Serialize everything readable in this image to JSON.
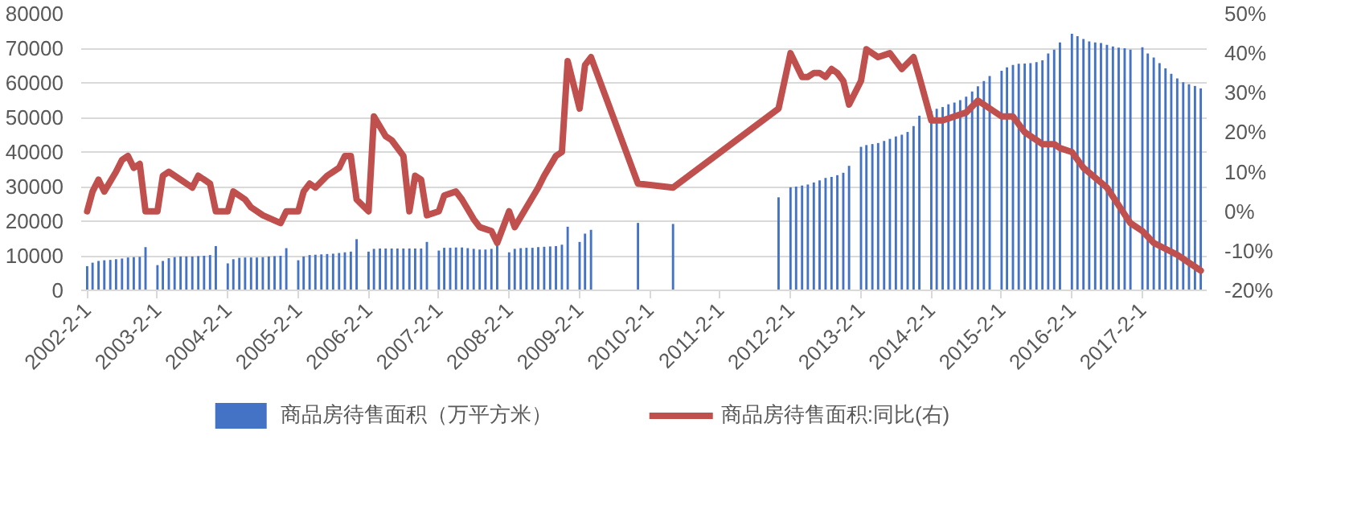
{
  "chart_data": {
    "type": "bar",
    "xlim": [
      "2002-01-01",
      "2018-01-01"
    ],
    "xticks": [
      {
        "value": "2002-02-01",
        "label": "2002-2-1"
      },
      {
        "value": "2003-02-01",
        "label": "2003-2-1"
      },
      {
        "value": "2004-02-01",
        "label": "2004-2-1"
      },
      {
        "value": "2005-02-01",
        "label": "2005-2-1"
      },
      {
        "value": "2006-02-01",
        "label": "2006-2-1"
      },
      {
        "value": "2007-02-01",
        "label": "2007-2-1"
      },
      {
        "value": "2008-02-01",
        "label": "2008-2-1"
      },
      {
        "value": "2009-02-01",
        "label": "2009-2-1"
      },
      {
        "value": "2010-02-01",
        "label": "2010-2-1"
      },
      {
        "value": "2011-02-01",
        "label": "2011-2-1"
      },
      {
        "value": "2012-02-01",
        "label": "2012-2-1"
      },
      {
        "value": "2013-02-01",
        "label": "2013-2-1"
      },
      {
        "value": "2014-02-01",
        "label": "2014-2-1"
      },
      {
        "value": "2015-02-01",
        "label": "2015-2-1"
      },
      {
        "value": "2016-02-01",
        "label": "2016-2-1"
      },
      {
        "value": "2017-02-01",
        "label": "2017-2-1"
      }
    ],
    "ylim": [
      0,
      80000
    ],
    "yticks": [
      0,
      10000,
      20000,
      30000,
      40000,
      50000,
      60000,
      70000,
      80000
    ],
    "y2lim": [
      -20,
      50
    ],
    "y2ticks": [
      {
        "value": -20,
        "label": "-20%"
      },
      {
        "value": -10,
        "label": "-10%"
      },
      {
        "value": 0,
        "label": "0%"
      },
      {
        "value": 10,
        "label": "10%"
      },
      {
        "value": 20,
        "label": "20%"
      },
      {
        "value": 30,
        "label": "30%"
      },
      {
        "value": 40,
        "label": "40%"
      },
      {
        "value": 50,
        "label": "50%"
      }
    ],
    "grid": "y",
    "legend": "bottom",
    "series": [
      {
        "name": "商品房待售面积（万平方米）",
        "color": "#4472c4",
        "x": [
          "2002-02",
          "2002-03",
          "2002-04",
          "2002-05",
          "2002-06",
          "2002-07",
          "2002-08",
          "2002-09",
          "2002-10",
          "2002-11",
          "2002-12",
          "2003-02",
          "2003-03",
          "2003-04",
          "2003-05",
          "2003-06",
          "2003-07",
          "2003-08",
          "2003-09",
          "2003-10",
          "2003-11",
          "2003-12",
          "2004-02",
          "2004-03",
          "2004-04",
          "2004-05",
          "2004-06",
          "2004-07",
          "2004-08",
          "2004-09",
          "2004-10",
          "2004-11",
          "2004-12",
          "2005-02",
          "2005-03",
          "2005-04",
          "2005-05",
          "2005-06",
          "2005-07",
          "2005-08",
          "2005-09",
          "2005-10",
          "2005-11",
          "2005-12",
          "2006-02",
          "2006-03",
          "2006-04",
          "2006-05",
          "2006-06",
          "2006-07",
          "2006-08",
          "2006-09",
          "2006-10",
          "2006-11",
          "2006-12",
          "2007-02",
          "2007-03",
          "2007-04",
          "2007-05",
          "2007-06",
          "2007-07",
          "2007-08",
          "2007-09",
          "2007-10",
          "2007-11",
          "2007-12",
          "2008-02",
          "2008-03",
          "2008-04",
          "2008-05",
          "2008-06",
          "2008-07",
          "2008-08",
          "2008-09",
          "2008-10",
          "2008-11",
          "2008-12",
          "2009-02",
          "2009-03",
          "2009-04",
          "2009-12",
          "2010-06",
          "2011-12",
          "2012-02",
          "2012-03",
          "2012-04",
          "2012-05",
          "2012-06",
          "2012-07",
          "2012-08",
          "2012-09",
          "2012-10",
          "2012-11",
          "2012-12",
          "2013-02",
          "2013-03",
          "2013-04",
          "2013-05",
          "2013-06",
          "2013-07",
          "2013-08",
          "2013-09",
          "2013-10",
          "2013-11",
          "2013-12",
          "2014-02",
          "2014-03",
          "2014-04",
          "2014-05",
          "2014-06",
          "2014-07",
          "2014-08",
          "2014-09",
          "2014-10",
          "2014-11",
          "2014-12",
          "2015-02",
          "2015-03",
          "2015-04",
          "2015-05",
          "2015-06",
          "2015-07",
          "2015-08",
          "2015-09",
          "2015-10",
          "2015-11",
          "2015-12",
          "2016-02",
          "2016-03",
          "2016-04",
          "2016-05",
          "2016-06",
          "2016-07",
          "2016-08",
          "2016-09",
          "2016-10",
          "2016-11",
          "2016-12",
          "2017-02",
          "2017-03",
          "2017-04",
          "2017-05",
          "2017-06",
          "2017-07",
          "2017-08",
          "2017-09",
          "2017-10",
          "2017-11",
          "2017-12"
        ],
        "values": [
          7000,
          8000,
          8500,
          8700,
          8800,
          9000,
          9200,
          9500,
          9600,
          9700,
          12500,
          7300,
          8500,
          9300,
          9600,
          9800,
          9800,
          9800,
          9900,
          10000,
          10200,
          12800,
          7800,
          9000,
          9400,
          9500,
          9500,
          9500,
          9600,
          9800,
          9900,
          10000,
          12200,
          8700,
          9800,
          10200,
          10300,
          10400,
          10500,
          10600,
          10800,
          11000,
          11200,
          14800,
          11200,
          12000,
          12100,
          12100,
          12100,
          12100,
          12100,
          12100,
          12100,
          12100,
          14000,
          11500,
          12300,
          12300,
          12400,
          12400,
          12200,
          12000,
          11800,
          11800,
          12000,
          13000,
          11000,
          12000,
          12200,
          12300,
          12300,
          12500,
          12600,
          12700,
          12800,
          13200,
          18400,
          14000,
          16400,
          17500,
          19500,
          19200,
          26900,
          29800,
          30000,
          30300,
          30600,
          31200,
          31800,
          32500,
          32800,
          33300,
          34000,
          36000,
          41500,
          42000,
          42300,
          42600,
          43200,
          43800,
          44500,
          45000,
          45800,
          47500,
          50500,
          51800,
          52500,
          53000,
          53800,
          54300,
          55000,
          56000,
          57500,
          59000,
          60500,
          62000,
          63500,
          64500,
          65200,
          65500,
          65600,
          65700,
          66000,
          66500,
          68500,
          69600,
          71700,
          74200,
          73500,
          72700,
          72000,
          71700,
          71500,
          71000,
          70500,
          70200,
          70000,
          69600,
          70300,
          68500,
          67300,
          65700,
          64200,
          62600,
          61300,
          60200,
          59600,
          59100,
          58400
        ]
      },
      {
        "name": "商品房待售面积:同比(右)",
        "type": "line",
        "axis": "y2",
        "color": "#c0504d",
        "x": [
          "2002-02",
          "2002-03",
          "2002-04",
          "2002-05",
          "2002-07",
          "2002-08",
          "2002-09",
          "2002-10",
          "2002-11",
          "2002-12",
          "2003-02",
          "2003-03",
          "2003-04",
          "2003-06",
          "2003-08",
          "2003-09",
          "2003-11",
          "2003-12",
          "2004-02",
          "2004-03",
          "2004-05",
          "2004-06",
          "2004-08",
          "2004-11",
          "2004-12",
          "2005-02",
          "2005-03",
          "2005-04",
          "2005-05",
          "2005-07",
          "2005-08",
          "2005-09",
          "2005-10",
          "2005-11",
          "2005-12",
          "2006-02",
          "2006-03",
          "2006-05",
          "2006-06",
          "2006-08",
          "2006-09",
          "2006-10",
          "2006-11",
          "2006-12",
          "2007-02",
          "2007-03",
          "2007-05",
          "2007-06",
          "2007-08",
          "2007-09",
          "2007-11",
          "2007-12",
          "2008-02",
          "2008-03",
          "2008-05",
          "2008-07",
          "2008-08",
          "2008-10",
          "2008-11",
          "2008-12",
          "2009-02",
          "2009-03",
          "2009-04",
          "2009-12",
          "2010-06",
          "2011-12",
          "2012-02",
          "2012-04",
          "2012-05",
          "2012-06",
          "2012-07",
          "2012-08",
          "2012-09",
          "2012-10",
          "2012-11",
          "2012-12",
          "2013-02",
          "2013-03",
          "2013-05",
          "2013-07",
          "2013-09",
          "2013-11",
          "2013-12",
          "2014-02",
          "2014-04",
          "2014-06",
          "2014-08",
          "2014-10",
          "2014-11",
          "2015-02",
          "2015-04",
          "2015-06",
          "2015-09",
          "2015-11",
          "2015-12",
          "2016-02",
          "2016-04",
          "2016-08",
          "2016-12",
          "2017-02",
          "2017-04",
          "2017-08",
          "2017-10",
          "2017-12"
        ],
        "values": [
          0,
          5,
          8,
          5,
          10,
          13,
          14,
          11,
          12,
          0,
          0,
          9,
          10,
          8,
          6,
          9,
          7,
          0,
          0,
          5,
          3,
          1,
          -1,
          -3,
          0,
          0,
          5,
          7,
          6,
          9,
          10,
          11,
          14,
          14,
          3,
          0,
          24,
          19,
          18,
          14,
          0,
          9,
          8,
          -1,
          0,
          4,
          5,
          3,
          -2,
          -4,
          -5,
          -8,
          0,
          -4,
          1,
          6,
          9,
          14,
          15,
          38,
          26,
          37,
          39,
          7,
          6,
          26,
          40,
          34,
          34,
          35,
          35,
          34,
          36,
          35,
          33,
          27,
          33,
          41,
          39,
          40,
          36,
          39,
          34,
          23,
          23,
          24,
          25,
          28,
          27,
          24,
          24,
          20,
          17,
          17,
          16,
          15,
          11,
          6,
          -3,
          -5,
          -8,
          -11,
          -13,
          -15
        ]
      }
    ]
  }
}
